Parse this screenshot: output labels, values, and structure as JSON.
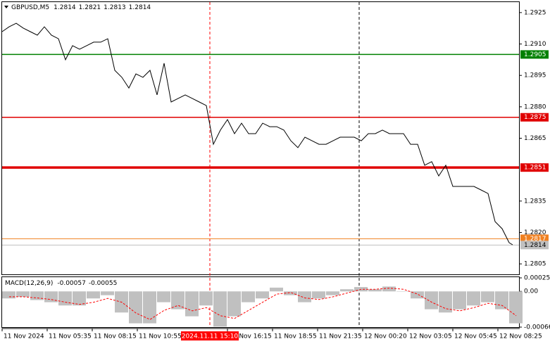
{
  "chart_data": [
    {
      "type": "line",
      "title": "GBPUSD,M5",
      "readout": [
        1.2814,
        1.2821,
        1.2813,
        1.2814
      ],
      "color": "#000000",
      "x": [
        0,
        5,
        10,
        15,
        20,
        25,
        30,
        35,
        40,
        45,
        50,
        55,
        60,
        65,
        70,
        75,
        80,
        85,
        90,
        95,
        100,
        105,
        110,
        115,
        120,
        125,
        130,
        135,
        140,
        145,
        150,
        155,
        160,
        165,
        170,
        175,
        180,
        185,
        190,
        195,
        200,
        205,
        210,
        215,
        220,
        225,
        230,
        235,
        240,
        245,
        250,
        255,
        260,
        265,
        270,
        275,
        280,
        285,
        290,
        295,
        300,
        305,
        310,
        315,
        320,
        325,
        330,
        335,
        340,
        345,
        350,
        355,
        360,
        362.5
      ],
      "values": [
        1.29159,
        1.29182,
        1.29199,
        1.29176,
        1.29159,
        1.29142,
        1.29182,
        1.29142,
        1.29125,
        1.29025,
        1.29092,
        1.29075,
        1.29092,
        1.29109,
        1.29109,
        1.29125,
        1.28974,
        1.28941,
        1.2889,
        1.28957,
        1.28941,
        1.28974,
        1.28857,
        1.29008,
        1.28823,
        1.2884,
        1.28857,
        1.2884,
        1.28823,
        1.28806,
        1.28621,
        1.28689,
        1.28739,
        1.28672,
        1.28722,
        1.28672,
        1.28672,
        1.28722,
        1.28705,
        1.28705,
        1.28689,
        1.28638,
        1.28605,
        1.28655,
        1.28638,
        1.28621,
        1.28621,
        1.28638,
        1.28655,
        1.28655,
        1.28655,
        1.28638,
        1.28672,
        1.28672,
        1.28689,
        1.28672,
        1.28672,
        1.28672,
        1.28621,
        1.28621,
        1.28521,
        1.28538,
        1.2847,
        1.28521,
        1.2842,
        1.2842,
        1.2842,
        1.2842,
        1.28403,
        1.28386,
        1.28252,
        1.28218,
        1.28151,
        1.28141
      ],
      "xlim": [
        0,
        367
      ],
      "ylim": [
        1.28,
        1.293
      ],
      "yticks": [
        1.2925,
        {
          "value": 1.291,
          "label": "1.2910"
        },
        1.2895,
        {
          "value": 1.288,
          "label": "1.2880"
        },
        1.2865,
        1.2835,
        {
          "value": 1.282,
          "label": "1.2820"
        },
        1.2805
      ],
      "xticks": [
        {
          "value": 0,
          "label": "11 Nov 2024"
        },
        {
          "value": 32,
          "label": "11 Nov 05:35"
        },
        {
          "value": 64,
          "label": "11 Nov 08:15"
        },
        {
          "value": 96,
          "label": "11 Nov 10:55"
        },
        {
          "value": 160,
          "label": "11 Nov 16:15"
        },
        {
          "value": 192,
          "label": "11 Nov 18:55"
        },
        {
          "value": 224,
          "label": "11 Nov 21:35"
        },
        {
          "value": 256,
          "label": "12 Nov 00:20"
        },
        {
          "value": 288,
          "label": "12 Nov 03:05"
        },
        {
          "value": 320,
          "label": "12 Nov 05:45"
        },
        {
          "value": 352,
          "label": "12 Nov 08:25"
        }
      ],
      "levels": [
        {
          "value": 1.2905,
          "color": "#008000",
          "text_color": "#ffffff",
          "width": 1.5
        },
        {
          "value": 1.2875,
          "color": "#e00000",
          "text_color": "#ffffff",
          "width": 1.5
        },
        {
          "value": 1.2851,
          "color": "#e00000",
          "text_color": "#ffffff",
          "width": 3.5
        },
        {
          "value": 1.2817,
          "color": "#f08020",
          "text_color": "#ffffff",
          "width": 1
        },
        {
          "value": 1.2814,
          "color": "#c0c0c0",
          "text_color": "#000000",
          "width": 1
        }
      ],
      "vlines": [
        {
          "value": 147.5,
          "label": "2024.11.11 15:10",
          "color": "#ff0000"
        },
        {
          "value": 253.5,
          "color": "#000000"
        }
      ]
    },
    {
      "type": "bar",
      "title": "MACD(12,26,9)",
      "readout": [
        -0.00057,
        -0.00055
      ],
      "x": [
        0,
        10,
        20,
        30,
        40,
        50,
        60,
        70,
        80,
        90,
        100,
        110,
        120,
        130,
        140,
        150,
        160,
        170,
        180,
        190,
        200,
        210,
        220,
        230,
        240,
        250,
        260,
        270,
        280,
        290,
        300,
        310,
        320,
        330,
        340,
        350,
        360
      ],
      "series": [
        {
          "type": "bar",
          "color": "#c0c0c0",
          "values": [
            -0.00013,
            -0.0001,
            -0.00016,
            -0.0002,
            -0.00026,
            -0.00026,
            -0.00013,
            -7e-05,
            -0.00039,
            -0.00059,
            -0.00059,
            -0.0002,
            -0.00033,
            -0.00046,
            -0.00026,
            -0.00065,
            -0.00046,
            -0.0002,
            -0.00013,
            7e-05,
            -7e-05,
            -0.0002,
            -0.00013,
            -7e-05,
            4e-05,
            8e-05,
            4e-05,
            9e-05,
            0,
            -0.00013,
            -0.00033,
            -0.00039,
            -0.00033,
            -0.00026,
            -0.0002,
            -0.00033,
            -0.00059
          ]
        },
        {
          "type": "line",
          "color": "#ff0000",
          "values": [
            -0.0001,
            -0.0001,
            -0.00012,
            -0.00015,
            -0.0002,
            -0.00024,
            -0.0002,
            -0.00013,
            -0.0002,
            -0.0004,
            -0.00052,
            -0.00035,
            -0.00026,
            -0.00036,
            -0.0003,
            -0.00045,
            -0.0005,
            -0.00035,
            -0.0002,
            -5e-05,
            -2e-05,
            -0.00012,
            -0.00015,
            -0.0001,
            -3e-05,
            4e-05,
            4e-05,
            6e-05,
            4e-05,
            -5e-05,
            -0.0002,
            -0.00032,
            -0.00036,
            -0.0003,
            -0.00022,
            -0.00026,
            -0.00045
          ]
        }
      ],
      "xlim": [
        0,
        367
      ],
      "ylim": [
        -0.00066,
        0.00025
      ],
      "yticks": [
        0.00025,
        {
          "value": 0,
          "label": "0.00"
        },
        -0.00066
      ]
    }
  ]
}
